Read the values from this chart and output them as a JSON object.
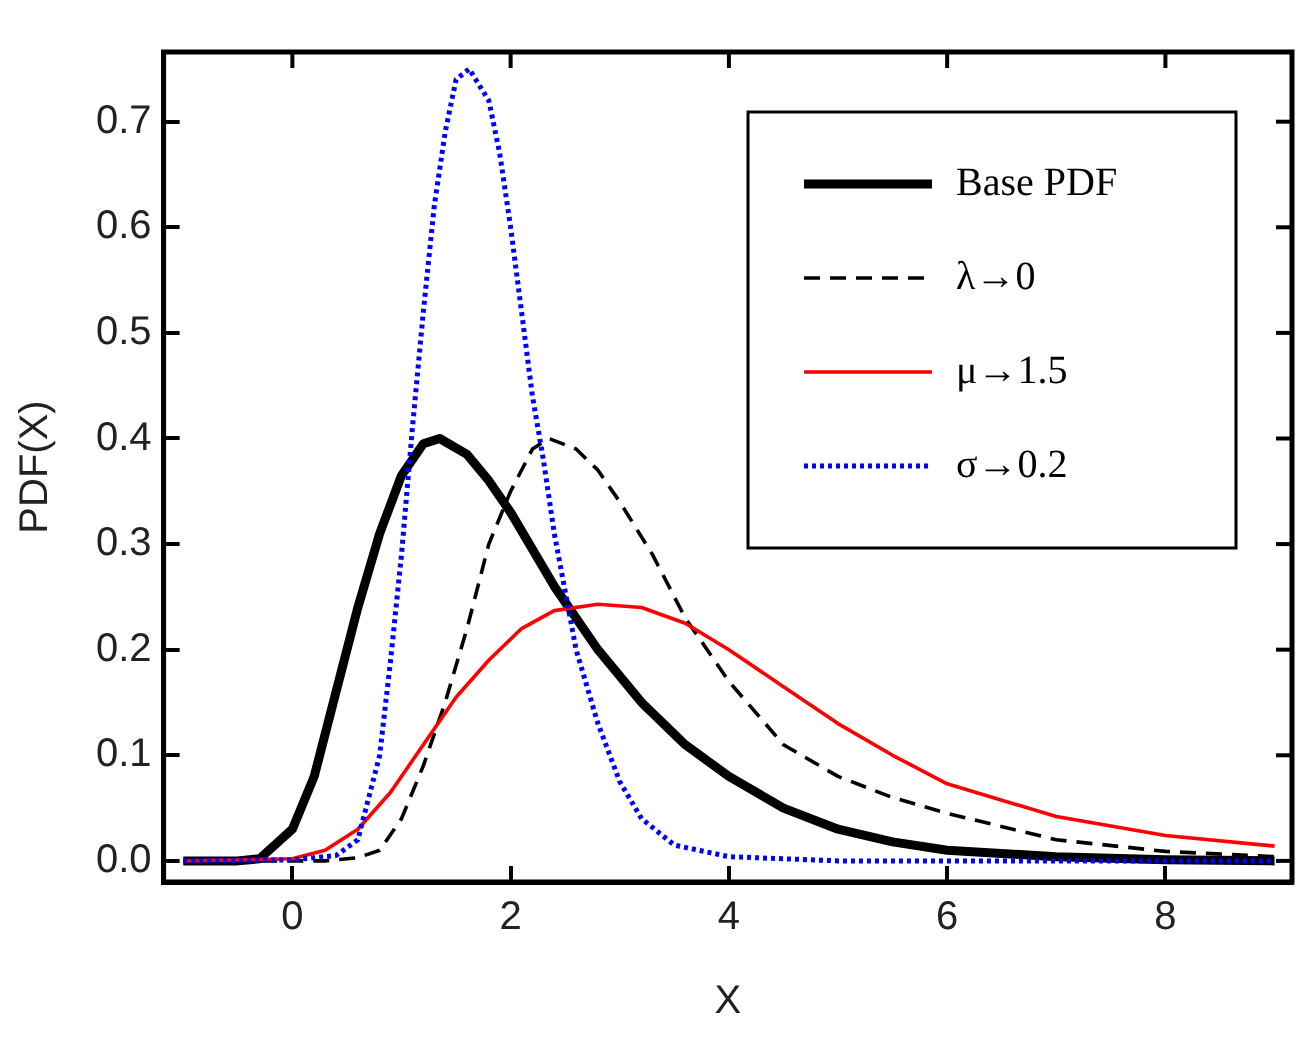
{
  "chart_data": {
    "type": "line",
    "xlabel": "X",
    "ylabel": "PDF(X)",
    "xlim": [
      -1.18,
      9.16
    ],
    "ylim": [
      -0.02,
      0.766
    ],
    "xticks": [
      0,
      2,
      4,
      6,
      8
    ],
    "yticks": [
      {
        "value": 0,
        "label": "0.0"
      },
      0.1,
      0.2,
      0.3,
      0.4,
      0.5,
      0.6,
      0.7
    ],
    "grid": false,
    "legend": "top right",
    "series": [
      {
        "name": "Base PDF",
        "color": "#000000",
        "line_style": "solid",
        "x": [
          -1,
          -0.5,
          -0.3,
          0,
          0.2,
          0.4,
          0.6,
          0.8,
          1.0,
          1.2,
          1.35,
          1.6,
          1.8,
          2.0,
          2.4,
          2.8,
          3.2,
          3.6,
          4.0,
          4.5,
          5,
          5.5,
          6,
          7,
          8,
          9
        ],
        "values": [
          0,
          0,
          0.002,
          0.03,
          0.08,
          0.16,
          0.24,
          0.31,
          0.365,
          0.395,
          0.4,
          0.385,
          0.36,
          0.33,
          0.26,
          0.2,
          0.15,
          0.11,
          0.08,
          0.05,
          0.03,
          0.018,
          0.01,
          0.004,
          0.001,
          0
        ]
      },
      {
        "name": "λ→0",
        "color": "#000000",
        "line_style": "dashed",
        "x": [
          -1,
          0.3,
          0.6,
          0.8,
          1.0,
          1.2,
          1.4,
          1.6,
          1.8,
          2.0,
          2.2,
          2.35,
          2.6,
          2.8,
          3.0,
          3.3,
          3.6,
          4,
          4.5,
          5,
          5.5,
          6,
          7,
          8,
          9
        ],
        "values": [
          0,
          0,
          0.003,
          0.01,
          0.04,
          0.09,
          0.15,
          0.22,
          0.3,
          0.35,
          0.39,
          0.4,
          0.39,
          0.37,
          0.34,
          0.29,
          0.23,
          0.17,
          0.11,
          0.08,
          0.06,
          0.045,
          0.02,
          0.009,
          0.004
        ]
      },
      {
        "name": "μ→1.5",
        "color": "#ff0000",
        "line_style": "solid",
        "x": [
          -1,
          0,
          0.3,
          0.6,
          0.9,
          1.2,
          1.5,
          1.8,
          2.1,
          2.4,
          2.8,
          3.2,
          3.6,
          4.0,
          4.5,
          5,
          5.5,
          6,
          7,
          8,
          9
        ],
        "values": [
          0,
          0.002,
          0.01,
          0.03,
          0.065,
          0.11,
          0.155,
          0.19,
          0.22,
          0.237,
          0.243,
          0.24,
          0.225,
          0.2,
          0.165,
          0.13,
          0.1,
          0.073,
          0.042,
          0.024,
          0.014
        ]
      },
      {
        "name": "σ→0.2",
        "color": "#0000ff",
        "line_style": "dotted",
        "x": [
          -1,
          0,
          0.4,
          0.6,
          0.8,
          0.9,
          1.0,
          1.1,
          1.2,
          1.3,
          1.4,
          1.5,
          1.62,
          1.8,
          1.9,
          2.0,
          2.1,
          2.2,
          2.3,
          2.4,
          2.6,
          2.8,
          3.0,
          3.2,
          3.5,
          4,
          5,
          9
        ],
        "values": [
          0,
          0.001,
          0.005,
          0.02,
          0.1,
          0.19,
          0.29,
          0.41,
          0.52,
          0.62,
          0.69,
          0.74,
          0.75,
          0.72,
          0.67,
          0.6,
          0.52,
          0.44,
          0.38,
          0.31,
          0.2,
          0.13,
          0.075,
          0.04,
          0.015,
          0.004,
          0,
          0
        ]
      }
    ]
  }
}
